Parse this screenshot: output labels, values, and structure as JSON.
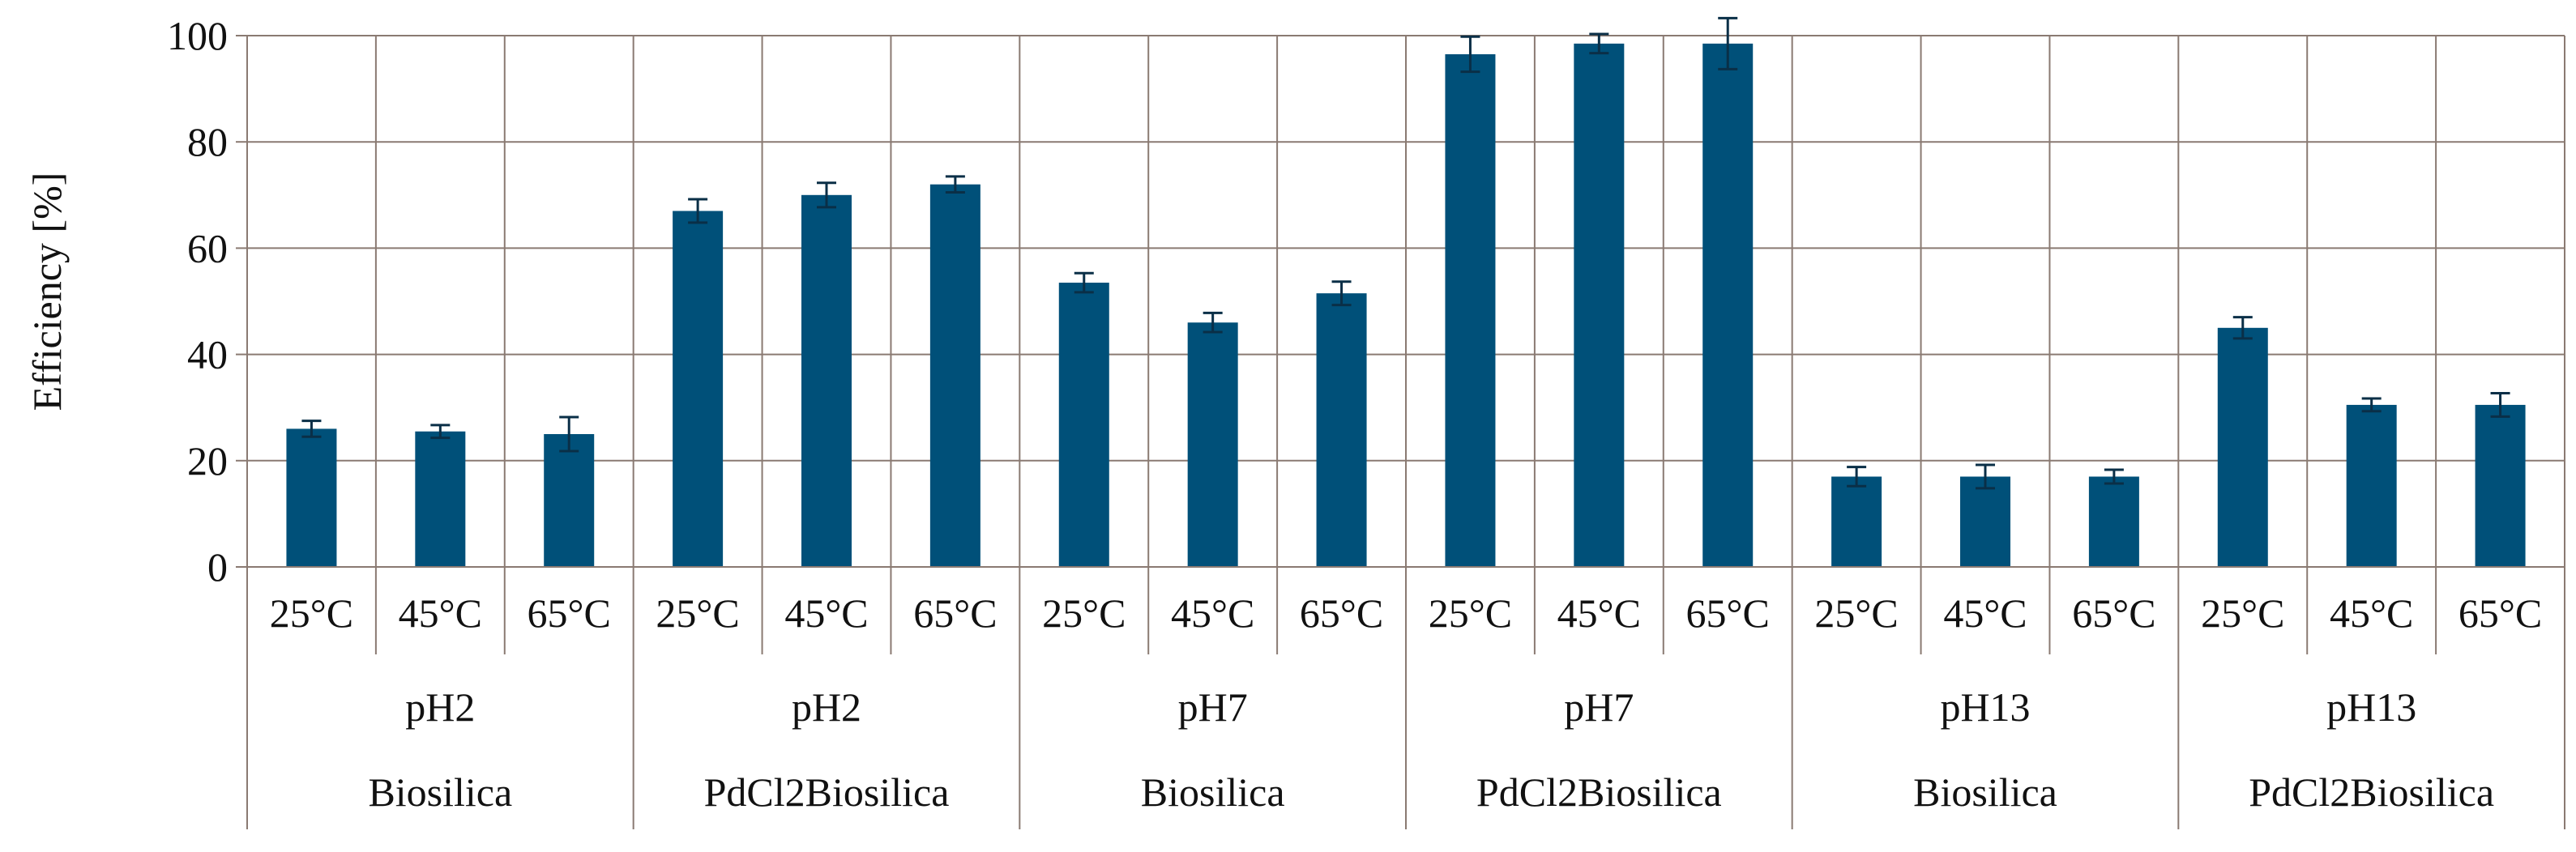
{
  "chart_data": {
    "type": "bar",
    "title": "",
    "xlabel": "",
    "ylabel": "Efficiency [%]",
    "ylim": [
      0,
      100
    ],
    "yticks": [
      "0",
      "20",
      "40",
      "60",
      "80",
      "100"
    ],
    "grid": true,
    "colors": {
      "bar": "#005079",
      "grid": "#8a7a72",
      "error": "#0a2f47"
    },
    "groups": [
      {
        "ph": "pH2",
        "material": "Biosilica",
        "categories": [
          "25°C",
          "45°C",
          "65°C"
        ],
        "values": [
          26,
          25.5,
          25
        ],
        "errors": [
          1.5,
          1.2,
          3.2
        ]
      },
      {
        "ph": "pH2",
        "material": "PdCl2Biosilica",
        "categories": [
          "25°C",
          "45°C",
          "65°C"
        ],
        "values": [
          67,
          70,
          72
        ],
        "errors": [
          2.2,
          2.3,
          1.5
        ]
      },
      {
        "ph": "pH7",
        "material": "Biosilica",
        "categories": [
          "25°C",
          "45°C",
          "65°C"
        ],
        "values": [
          53.5,
          46,
          51.5
        ],
        "errors": [
          1.8,
          1.8,
          2.2
        ]
      },
      {
        "ph": "pH7",
        "material": "PdCl2Biosilica",
        "categories": [
          "25°C",
          "45°C",
          "65°C"
        ],
        "values": [
          96.5,
          98.5,
          98.5
        ],
        "errors": [
          3.3,
          1.8,
          4.8
        ]
      },
      {
        "ph": "pH13",
        "material": "Biosilica",
        "categories": [
          "25°C",
          "45°C",
          "65°C"
        ],
        "values": [
          17,
          17,
          17
        ],
        "errors": [
          1.8,
          2.2,
          1.3
        ]
      },
      {
        "ph": "pH13",
        "material": "PdCl2Biosilica",
        "categories": [
          "25°C",
          "45°C",
          "65°C"
        ],
        "values": [
          45,
          30.5,
          30.5
        ],
        "errors": [
          2.0,
          1.2,
          2.2
        ]
      }
    ]
  }
}
